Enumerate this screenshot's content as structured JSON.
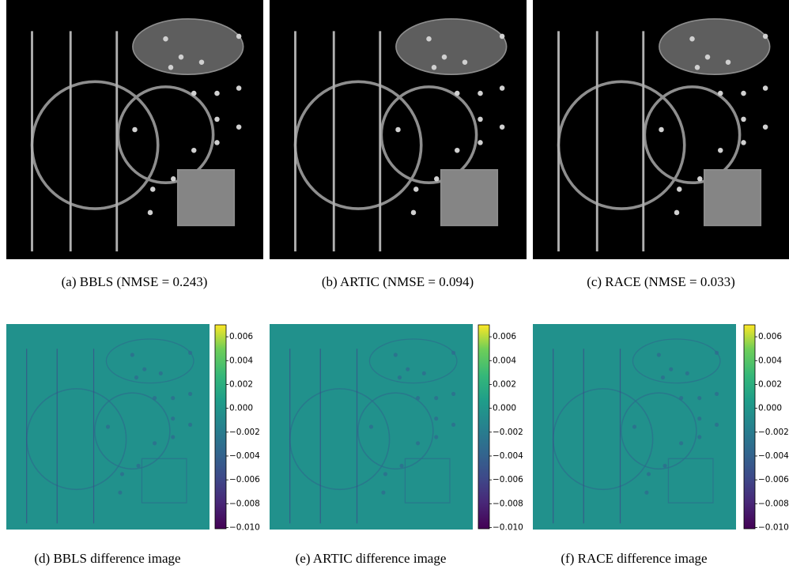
{
  "reconstructions": [
    "(a) BBLS (NMSE = 0.243)",
    "(b) ARTIC (NMSE = 0.094)",
    "(c) RACE (NMSE = 0.033)"
  ],
  "differences": [
    "(d) BBLS difference image",
    "(e) ARTIC difference image",
    "(f) RACE difference image"
  ],
  "colorbar": {
    "lim": [
      -0.0101,
      0.007
    ],
    "ticks": [
      0.006,
      0.004,
      0.002,
      {
        "value": 0,
        "label": "0.000"
      },
      {
        "value": -0.002,
        "label": "−0.002"
      },
      {
        "value": -0.004,
        "label": "−0.004"
      },
      {
        "value": -0.006,
        "label": "−0.006"
      },
      {
        "value": -0.008,
        "label": "−0.008"
      },
      {
        "value": -0.01,
        "label": "−0.010"
      }
    ]
  }
}
